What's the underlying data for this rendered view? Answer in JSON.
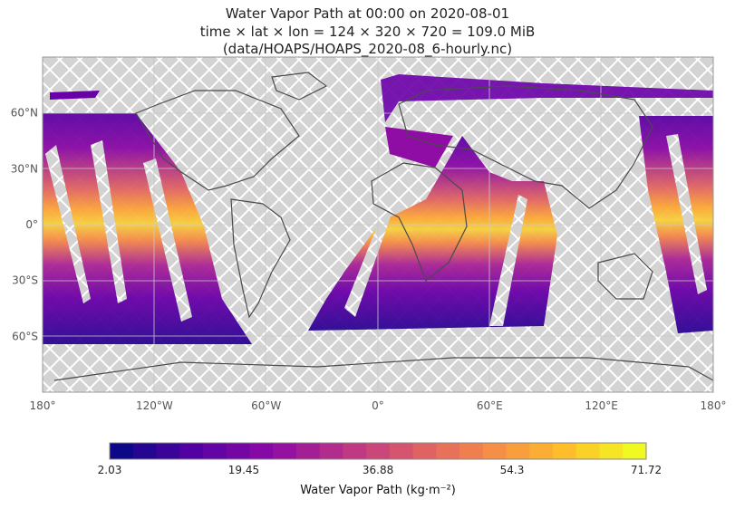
{
  "title": {
    "line1": "Water Vapor Path at 00:00 on 2020-08-01",
    "line2": "time × lat × lon = 124 × 320 × 720 = 109.0 MiB",
    "line3": "(data/HOAPS/HOAPS_2020-08_6-hourly.nc)"
  },
  "map": {
    "projection": "plate-carree",
    "lon_range": [
      -180,
      180
    ],
    "lat_range": [
      -90,
      90
    ],
    "grid": true,
    "missing_pattern": "white-crosshatch",
    "colors": {
      "missing": "#d3d3d3",
      "coast": "#4a4a4a"
    },
    "lon_ticks": [
      "180°",
      "120°W",
      "60°W",
      "0°",
      "60°E",
      "120°E",
      "180°"
    ],
    "lat_ticks": [
      "60°N",
      "30°N",
      "0°",
      "30°S",
      "60°S"
    ],
    "lon_tick_values": [
      -180,
      -120,
      -60,
      0,
      60,
      120,
      180
    ],
    "lat_tick_values": [
      60,
      30,
      0,
      -30,
      -60
    ]
  },
  "colorbar": {
    "label": "Water Vapor Path (kg·m⁻²)",
    "colormap": "plasma",
    "min": 2.03,
    "max": 71.72,
    "levels": 23,
    "ticks": [
      "2.03",
      "19.45",
      "36.88",
      "54.3",
      "71.72"
    ],
    "tick_values": [
      2.03,
      19.45,
      36.88,
      54.3,
      71.72
    ]
  }
}
